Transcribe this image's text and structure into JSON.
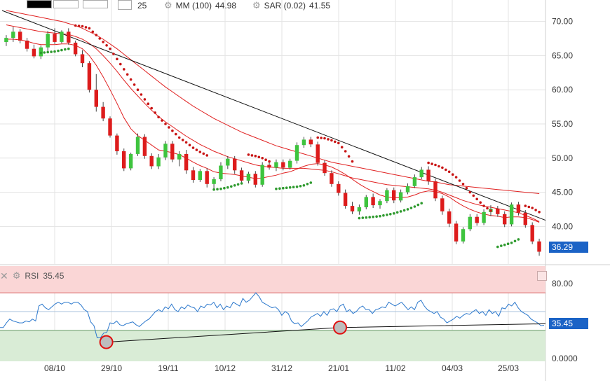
{
  "colors": {
    "up": "#3ec43e",
    "down": "#dd1c1c",
    "ma": "#e02020",
    "sar_up": "#2e9a2e",
    "sar_down": "#c81414",
    "trend": "#111111",
    "rsi_line": "#2a77cc",
    "rsi_upper_zone": "#fad6d6",
    "rsi_lower_zone": "#d9ecd6",
    "badge_price": "#1b63c6",
    "badge_rsi": "#1b63c6",
    "grid": "#e3e3e3"
  },
  "toolbar": {
    "indicator_value_partial": "25",
    "mm_label": "MM (100)",
    "mm_value": "44.98",
    "sar_label": "SAR (0.02)",
    "sar_value": "41.55",
    "gear_icon_1": "gear-icon",
    "gear_icon_2": "gear-icon"
  },
  "rsi_panel": {
    "label": "RSI",
    "value": "35.45",
    "close_icon": "x-icon",
    "gear_icon": "gear-icon",
    "ticks": [
      "80.00",
      "0.0000"
    ],
    "last_value_badge": "35.45"
  },
  "chart_data": {
    "type": "candlestick",
    "x_tick_labels": [
      "08/10",
      "29/10",
      "19/11",
      "10/12",
      "31/12",
      "21/01",
      "11/02",
      "04/03",
      "25/03"
    ],
    "y_tick_labels": [
      "70.00",
      "65.00",
      "60.00",
      "55.00",
      "50.00",
      "45.00",
      "40.00"
    ],
    "ylim": [
      34.5,
      71.5
    ],
    "grid": true,
    "last_price_badge": "36.29",
    "candles": [
      [
        67.0,
        68.0,
        66.4,
        67.6
      ],
      [
        67.6,
        69.2,
        67.0,
        68.5
      ],
      [
        68.5,
        68.9,
        66.8,
        67.2
      ],
      [
        67.2,
        67.6,
        65.6,
        66.0
      ],
      [
        66.0,
        66.6,
        64.6,
        64.9
      ],
      [
        64.9,
        66.5,
        64.5,
        66.2
      ],
      [
        66.2,
        68.6,
        65.6,
        68.2
      ],
      [
        68.2,
        69.0,
        66.7,
        67.0
      ],
      [
        67.0,
        68.7,
        66.8,
        68.5
      ],
      [
        68.5,
        69.0,
        66.6,
        66.9
      ],
      [
        66.9,
        67.2,
        64.9,
        65.2
      ],
      [
        65.2,
        65.8,
        63.3,
        63.9
      ],
      [
        63.9,
        64.2,
        59.6,
        60.0
      ],
      [
        60.0,
        62.3,
        56.8,
        57.5
      ],
      [
        57.5,
        58.2,
        55.4,
        55.8
      ],
      [
        55.8,
        56.1,
        53.0,
        53.3
      ],
      [
        53.3,
        53.6,
        50.5,
        51.0
      ],
      [
        51.0,
        51.4,
        48.1,
        48.5
      ],
      [
        48.5,
        50.8,
        48.2,
        50.6
      ],
      [
        50.6,
        53.6,
        50.3,
        53.1
      ],
      [
        53.1,
        53.5,
        49.9,
        50.3
      ],
      [
        50.3,
        50.7,
        48.4,
        48.8
      ],
      [
        48.8,
        50.6,
        48.4,
        50.1
      ],
      [
        50.1,
        52.5,
        49.7,
        52.1
      ],
      [
        52.1,
        52.5,
        49.4,
        49.8
      ],
      [
        49.8,
        51.0,
        48.8,
        50.6
      ],
      [
        50.6,
        51.2,
        47.7,
        48.2
      ],
      [
        48.2,
        48.7,
        46.4,
        46.8
      ],
      [
        46.8,
        48.4,
        46.5,
        48.1
      ],
      [
        48.1,
        48.5,
        45.7,
        46.2
      ],
      [
        46.2,
        47.2,
        45.5,
        46.9
      ],
      [
        46.9,
        49.4,
        46.6,
        48.9
      ],
      [
        48.9,
        50.3,
        48.4,
        49.9
      ],
      [
        49.9,
        50.3,
        47.7,
        48.2
      ],
      [
        48.2,
        48.6,
        46.3,
        46.7
      ],
      [
        46.7,
        48.0,
        46.3,
        47.7
      ],
      [
        47.7,
        48.1,
        45.7,
        46.1
      ],
      [
        46.1,
        49.4,
        45.8,
        49.0
      ],
      [
        49.0,
        49.6,
        48.3,
        48.6
      ],
      [
        48.6,
        49.8,
        48.1,
        49.4
      ],
      [
        49.4,
        49.8,
        48.2,
        48.6
      ],
      [
        48.6,
        49.9,
        48.3,
        49.6
      ],
      [
        49.6,
        52.3,
        49.2,
        51.9
      ],
      [
        51.9,
        53.1,
        51.5,
        52.7
      ],
      [
        52.7,
        53.1,
        51.6,
        52.0
      ],
      [
        52.0,
        52.4,
        48.9,
        49.3
      ],
      [
        49.3,
        49.7,
        47.4,
        47.8
      ],
      [
        47.8,
        48.2,
        45.8,
        46.2
      ],
      [
        46.2,
        46.6,
        44.5,
        44.9
      ],
      [
        44.9,
        45.4,
        42.6,
        43.0
      ],
      [
        43.0,
        43.6,
        41.8,
        42.2
      ],
      [
        42.2,
        43.2,
        41.7,
        42.8
      ],
      [
        42.8,
        44.6,
        42.5,
        44.3
      ],
      [
        44.3,
        44.8,
        42.7,
        43.1
      ],
      [
        43.1,
        44.0,
        42.6,
        43.7
      ],
      [
        43.7,
        45.6,
        43.4,
        45.3
      ],
      [
        45.3,
        45.7,
        43.4,
        43.8
      ],
      [
        43.8,
        45.4,
        43.5,
        45.0
      ],
      [
        45.0,
        46.3,
        44.7,
        45.9
      ],
      [
        45.9,
        47.6,
        45.6,
        47.2
      ],
      [
        47.2,
        48.7,
        46.9,
        48.3
      ],
      [
        48.3,
        48.8,
        46.1,
        46.6
      ],
      [
        46.6,
        47.0,
        43.7,
        44.1
      ],
      [
        44.1,
        44.5,
        41.7,
        42.2
      ],
      [
        42.2,
        42.6,
        39.9,
        40.4
      ],
      [
        40.4,
        40.8,
        37.4,
        37.8
      ],
      [
        37.8,
        39.9,
        37.5,
        39.6
      ],
      [
        39.6,
        41.8,
        39.3,
        41.4
      ],
      [
        41.4,
        41.8,
        40.1,
        40.5
      ],
      [
        40.5,
        42.5,
        40.2,
        42.1
      ],
      [
        42.1,
        43.1,
        41.5,
        42.6
      ],
      [
        42.6,
        43.0,
        41.4,
        41.8
      ],
      [
        41.8,
        42.2,
        39.9,
        40.3
      ],
      [
        40.3,
        43.5,
        40.0,
        43.2
      ],
      [
        43.2,
        43.6,
        41.6,
        42.0
      ],
      [
        42.0,
        42.4,
        39.8,
        40.2
      ],
      [
        40.2,
        40.6,
        37.4,
        37.8
      ],
      [
        37.8,
        38.2,
        35.7,
        36.29
      ]
    ],
    "ma_short": [
      67.4,
      67.4,
      67.3,
      67.1,
      66.8,
      66.6,
      66.6,
      66.6,
      66.7,
      66.7,
      66.5,
      66.0,
      65.0,
      63.6,
      61.9,
      60.0,
      58.0,
      55.9,
      54.3,
      53.3,
      52.6,
      51.9,
      51.2,
      51.0,
      50.8,
      50.5,
      50.0,
      49.4,
      48.9,
      48.5,
      48.0,
      47.8,
      47.7,
      47.6,
      47.4,
      47.2,
      47.0,
      47.1,
      47.3,
      47.5,
      47.8,
      48.0,
      48.4,
      48.8,
      49.1,
      49.2,
      49.0,
      48.7,
      48.2,
      47.6,
      46.9,
      46.2,
      45.6,
      45.1,
      44.6,
      44.3,
      44.2,
      44.2,
      44.3,
      44.6,
      45.0,
      45.2,
      45.1,
      44.8,
      44.3,
      43.6,
      43.0,
      42.5,
      42.1,
      41.8,
      41.6,
      41.5,
      41.3,
      41.4,
      41.4,
      41.3,
      41.0,
      40.6
    ],
    "ma_medium": [
      69.5,
      69.3,
      69.1,
      68.9,
      68.7,
      68.5,
      68.4,
      68.3,
      68.2,
      68.1,
      67.8,
      67.4,
      66.8,
      66.0,
      65.0,
      63.9,
      62.7,
      61.4,
      60.2,
      59.1,
      58.0,
      57.0,
      56.1,
      55.3,
      54.6,
      53.9,
      53.2,
      52.6,
      52.0,
      51.5,
      51.0,
      50.6,
      50.2,
      49.9,
      49.6,
      49.3,
      49.0,
      48.8,
      48.7,
      48.6,
      48.5,
      48.5,
      48.5,
      48.5,
      48.4,
      48.3,
      48.2,
      48.0,
      47.7,
      47.4,
      47.1,
      46.9,
      46.7,
      46.5,
      46.3,
      46.1,
      46.0,
      45.9,
      45.8,
      45.7,
      45.6,
      45.5,
      45.3,
      45.0,
      44.6,
      44.2,
      43.8,
      43.5,
      43.2,
      43.0,
      42.8,
      42.6,
      42.4,
      42.2,
      42.0,
      41.6,
      41.2,
      40.7
    ],
    "ma_long": [
      71.6,
      71.4,
      71.2,
      71.0,
      70.8,
      70.6,
      70.4,
      70.2,
      70.0,
      69.7,
      69.4,
      69.0,
      68.5,
      68.0,
      67.4,
      66.7,
      66.0,
      65.2,
      64.4,
      63.6,
      62.8,
      62.0,
      61.2,
      60.4,
      59.7,
      59.0,
      58.3,
      57.6,
      57.0,
      56.4,
      55.8,
      55.3,
      54.8,
      54.3,
      53.8,
      53.4,
      53.0,
      52.6,
      52.2,
      51.8,
      51.5,
      51.2,
      50.9,
      50.6,
      50.3,
      50.0,
      49.7,
      49.4,
      49.2,
      49.0,
      48.8,
      48.6,
      48.4,
      48.2,
      48.0,
      47.8,
      47.6,
      47.4,
      47.2,
      47.0,
      46.8,
      46.6,
      46.5,
      46.3,
      46.1,
      46.0,
      45.9,
      45.8,
      45.7,
      45.6,
      45.5,
      45.4,
      45.3,
      45.2,
      45.1,
      45.0,
      44.9,
      44.8
    ],
    "sar": [
      [
        null,
        null
      ],
      [
        null,
        null
      ],
      [
        null,
        null
      ],
      [
        null,
        null
      ],
      [
        null,
        null
      ],
      [
        65.4,
        1
      ],
      [
        65.5,
        1
      ],
      [
        65.6,
        1
      ],
      [
        65.8,
        1
      ],
      [
        66.0,
        1
      ],
      [
        69.4,
        0
      ],
      [
        69.3,
        0
      ],
      [
        69.0,
        0
      ],
      [
        68.0,
        0
      ],
      [
        67.0,
        0
      ],
      [
        66.0,
        0
      ],
      [
        64.5,
        0
      ],
      [
        63.0,
        0
      ],
      [
        61.5,
        0
      ],
      [
        60.0,
        0
      ],
      [
        58.6,
        0
      ],
      [
        57.3,
        0
      ],
      [
        56.0,
        0
      ],
      [
        55.0,
        0
      ],
      [
        54.0,
        0
      ],
      [
        53.0,
        0
      ],
      [
        52.3,
        0
      ],
      [
        51.5,
        0
      ],
      [
        50.9,
        0
      ],
      [
        50.4,
        0
      ],
      [
        45.4,
        1
      ],
      [
        45.5,
        1
      ],
      [
        45.7,
        1
      ],
      [
        46.0,
        1
      ],
      [
        46.3,
        1
      ],
      [
        50.5,
        0
      ],
      [
        50.3,
        0
      ],
      [
        50.0,
        0
      ],
      [
        49.5,
        0
      ],
      [
        45.5,
        1
      ],
      [
        45.6,
        1
      ],
      [
        45.7,
        1
      ],
      [
        45.8,
        1
      ],
      [
        46.0,
        1
      ],
      [
        46.4,
        1
      ],
      [
        53.0,
        0
      ],
      [
        52.9,
        0
      ],
      [
        52.6,
        0
      ],
      [
        52.2,
        0
      ],
      [
        51.0,
        0
      ],
      [
        49.5,
        0
      ],
      [
        41.2,
        1
      ],
      [
        41.3,
        1
      ],
      [
        41.4,
        1
      ],
      [
        41.5,
        1
      ],
      [
        41.7,
        1
      ],
      [
        41.9,
        1
      ],
      [
        42.2,
        1
      ],
      [
        42.5,
        1
      ],
      [
        42.9,
        1
      ],
      [
        43.4,
        1
      ],
      [
        49.3,
        0
      ],
      [
        49.0,
        0
      ],
      [
        48.6,
        0
      ],
      [
        48.0,
        0
      ],
      [
        47.2,
        0
      ],
      [
        46.2,
        0
      ],
      [
        45.0,
        0
      ],
      [
        44.0,
        0
      ],
      [
        43.0,
        0
      ],
      [
        42.3,
        0
      ],
      [
        37.0,
        1
      ],
      [
        37.3,
        1
      ],
      [
        37.6,
        1
      ],
      [
        38.1,
        1
      ],
      [
        43.0,
        0
      ],
      [
        42.7,
        0
      ],
      [
        42.1,
        0
      ]
    ],
    "trend_line": [
      [
        0,
        71.6
      ],
      [
        77.5,
        40.9
      ]
    ],
    "rsi": {
      "ylim": [
        0,
        100
      ],
      "overbought": 70,
      "oversold": 30,
      "values": [
        33,
        33,
        38,
        42,
        40,
        39,
        38,
        38,
        40,
        39,
        42,
        40,
        56,
        58,
        54,
        52,
        55,
        58,
        60,
        58,
        60,
        60,
        58,
        60,
        60,
        57,
        52,
        50,
        39,
        35,
        22,
        22,
        27,
        28,
        38,
        37,
        40,
        36,
        35,
        37,
        38,
        39,
        36,
        34,
        37,
        40,
        42,
        46,
        50,
        52,
        50,
        55,
        53,
        58,
        52,
        50,
        55,
        53,
        57,
        55,
        54,
        50,
        56,
        54,
        58,
        57,
        60,
        54,
        58,
        52,
        56,
        54,
        60,
        58,
        56,
        64,
        60,
        62,
        66,
        70,
        66,
        60,
        58,
        56,
        54,
        55,
        52,
        46,
        50,
        48,
        40,
        37,
        38,
        34,
        37,
        40,
        44,
        46,
        48,
        45,
        50,
        46,
        52,
        53,
        50,
        56,
        58,
        50,
        52,
        48,
        50,
        54,
        56,
        52,
        52,
        48,
        52,
        53,
        55,
        54,
        60,
        58,
        56,
        58,
        60,
        56,
        52,
        55,
        52,
        60,
        62,
        56,
        52,
        50,
        48,
        50,
        44,
        42,
        38,
        40,
        42,
        45,
        43,
        46,
        48,
        47,
        50,
        52,
        48,
        50,
        46,
        52,
        48,
        50,
        45,
        54,
        53,
        58,
        56,
        60,
        54,
        50,
        48,
        46,
        42,
        40,
        38,
        35,
        35.45
      ],
      "divergence_line": [
        [
          30,
          17.5
        ],
        [
          96,
          33.0
        ],
        [
          154,
          37.0
        ]
      ],
      "marked_lows": [
        [
          30,
          17.5
        ],
        [
          96,
          33.0
        ]
      ]
    }
  }
}
